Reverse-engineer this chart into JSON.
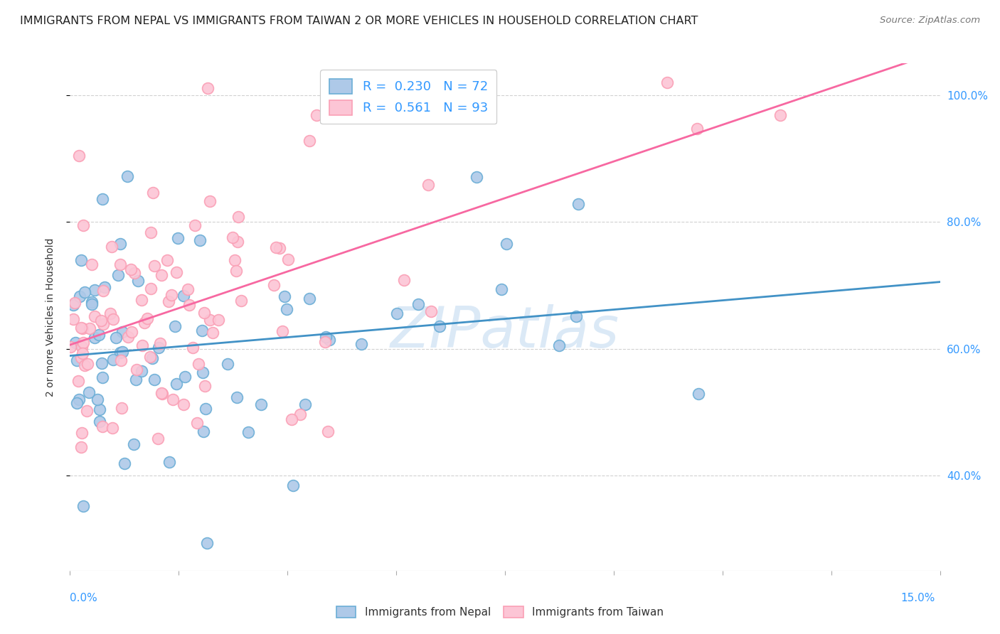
{
  "title": "IMMIGRANTS FROM NEPAL VS IMMIGRANTS FROM TAIWAN 2 OR MORE VEHICLES IN HOUSEHOLD CORRELATION CHART",
  "source": "Source: ZipAtlas.com",
  "ylabel": "2 or more Vehicles in Household",
  "xlim": [
    0.0,
    15.0
  ],
  "ylim": [
    25.0,
    105.0
  ],
  "yticks": [
    40.0,
    60.0,
    80.0,
    100.0
  ],
  "ytick_labels": [
    "40.0%",
    "60.0%",
    "80.0%",
    "100.0%"
  ],
  "nepal_R": 0.23,
  "nepal_N": 72,
  "taiwan_R": 0.561,
  "taiwan_N": 93,
  "blue_color": "#6baed6",
  "blue_face": "#aec9e8",
  "pink_color": "#fa9fb5",
  "pink_face": "#fcc5d5",
  "blue_line_color": "#4292c6",
  "pink_line_color": "#f768a1",
  "legend_text_color": "#3399ff",
  "watermark": "ZIPatlas",
  "background_color": "#ffffff",
  "grid_color": "#cccccc",
  "title_fontsize": 11.5,
  "source_fontsize": 9.5,
  "legend_fontsize": 13,
  "seed_nepal": 42,
  "seed_taiwan": 137
}
